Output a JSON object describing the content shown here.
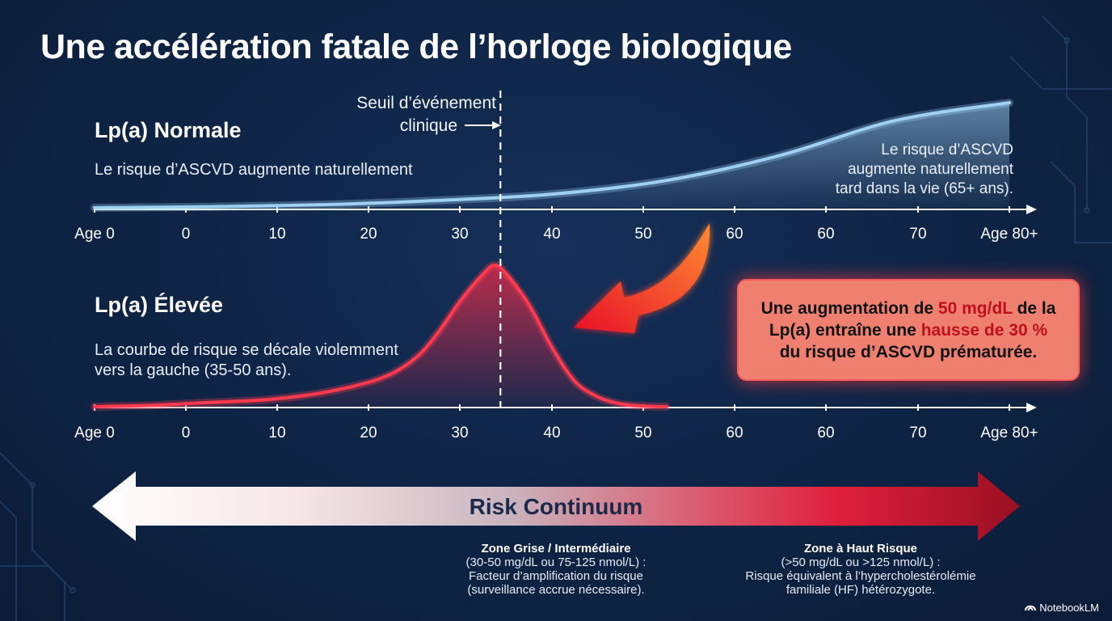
{
  "title": "Une accélération fatale de l’horloge biologique",
  "colors": {
    "background": "#0f2547",
    "normal_curve": "#9ed0f2",
    "elevated_curve": "#ff3a4e",
    "callout_bg": "#ef8070",
    "highlight": "#c0101a"
  },
  "threshold": {
    "label_line1": "Seuil d’événement",
    "label_line2": "clinique",
    "age": 35
  },
  "normal_panel": {
    "title": "Lp(a) Normale",
    "description": "Le risque d’ASCVD augmente naturellement",
    "note_lines": [
      "Le risque d’ASCVD",
      "augmente naturellement",
      "tard dans la vie (65+ ans)."
    ]
  },
  "elevated_panel": {
    "title": "Lp(a) Élevée",
    "description_lines": [
      "La courbe de risque se décale violemment",
      "vers la gauche (35-50 ans)."
    ]
  },
  "callout": {
    "line1_a": "Une augmentation de ",
    "line1_b": "50 mg/dL",
    "line1_c": " de la",
    "line2_a": "Lp(a) entraîne une ",
    "line2_b": "hausse de 30 %",
    "line3": "du risque d’ASCVD prématurée."
  },
  "continuum": {
    "label": "Risk Continuum",
    "zones": [
      {
        "title": "Zone Grise / Intermédiaire",
        "lines": [
          "(30-50 mg/dL ou 75-125 nmol/L) :",
          "Facteur d’amplification du risque",
          "(surveillance accrue nécessaire)."
        ]
      },
      {
        "title": "Zone à Haut Risque",
        "lines": [
          "(>50 mg/dL ou >125 nmol/L) :",
          "Risque équivalent à l’hypercholestérolémie",
          "familiale (HF) hétérozygote."
        ]
      }
    ]
  },
  "brand": "NotebookLM",
  "chart_data": [
    {
      "type": "area",
      "name": "Lp(a) Normale",
      "tick_labels": [
        "Age 0",
        "0",
        "10",
        "20",
        "30",
        "40",
        "50",
        "60",
        "60",
        "70",
        "Age 80+"
      ],
      "x": [
        0,
        10,
        20,
        30,
        40,
        50,
        60,
        70,
        80
      ],
      "y": [
        0.0,
        0.01,
        0.03,
        0.07,
        0.13,
        0.26,
        0.5,
        0.83,
        1.0
      ],
      "ylim": [
        0,
        1
      ],
      "grid": false,
      "legend": "none"
    },
    {
      "type": "area",
      "name": "Lp(a) Élevée",
      "tick_labels": [
        "Age 0",
        "0",
        "10",
        "20",
        "30",
        "40",
        "50",
        "60",
        "60",
        "70",
        "Age 80+"
      ],
      "x": [
        0,
        5,
        10,
        15,
        20,
        25,
        28,
        30,
        32,
        34,
        35,
        36,
        38,
        40,
        42,
        44,
        46,
        48,
        50
      ],
      "y": [
        0.0,
        0.01,
        0.03,
        0.05,
        0.1,
        0.2,
        0.34,
        0.52,
        0.75,
        0.94,
        1.0,
        0.94,
        0.72,
        0.42,
        0.18,
        0.07,
        0.02,
        0.005,
        0.0
      ],
      "ylim": [
        0,
        1
      ],
      "grid": false,
      "legend": "none"
    }
  ]
}
